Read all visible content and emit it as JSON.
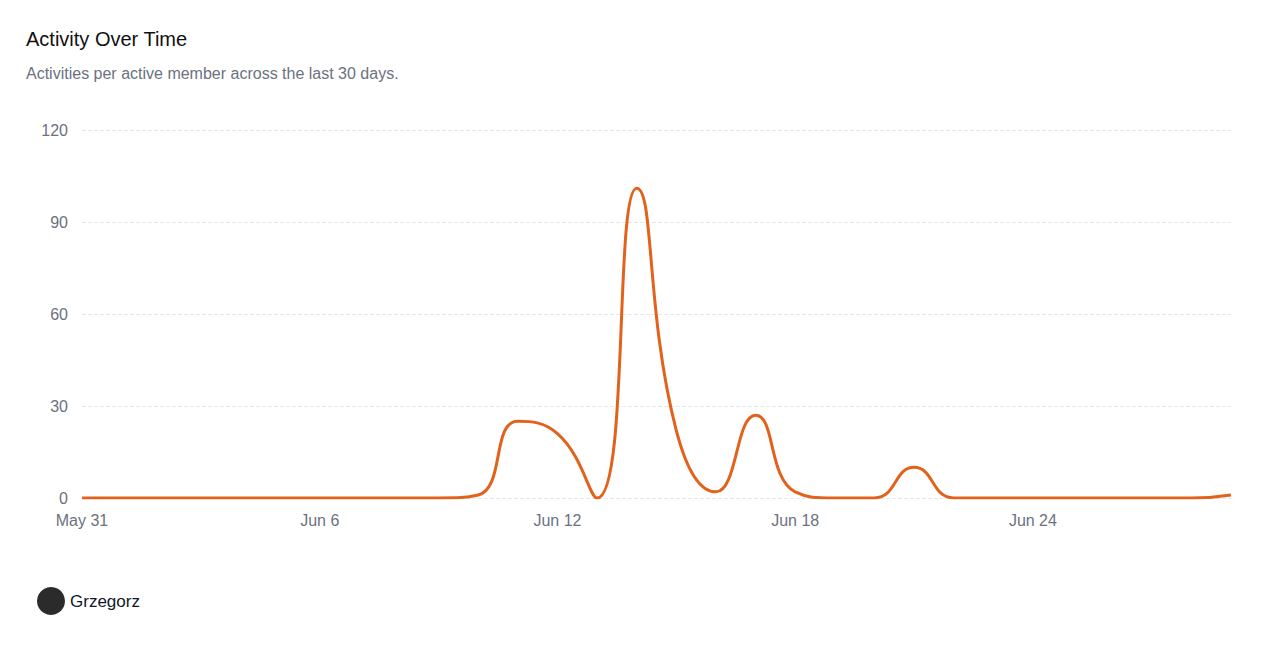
{
  "chart_data": {
    "type": "line",
    "title": "Activity Over Time",
    "subtitle": "Activities per active member across the last 30 days.",
    "categories": [
      "May 31",
      null,
      null,
      null,
      null,
      null,
      "Jun 6",
      null,
      null,
      null,
      null,
      null,
      "Jun 12",
      null,
      null,
      null,
      null,
      null,
      "Jun 18",
      null,
      null,
      null,
      null,
      null,
      "Jun 24",
      null,
      null,
      null,
      null,
      null
    ],
    "series": [
      {
        "name": "Grzegorz",
        "color": "#e2621b",
        "values": [
          0,
          0,
          0,
          0,
          0,
          0,
          0,
          0,
          0,
          0,
          1,
          25,
          21,
          0,
          101,
          22,
          2,
          27,
          2,
          0,
          0,
          10,
          0,
          0,
          0,
          0,
          0,
          0,
          0,
          1
        ]
      }
    ],
    "ylim": [
      0,
      120
    ],
    "yticks": [
      0,
      30,
      60,
      90,
      120
    ],
    "grid": true,
    "legend": "bottom left",
    "line_style": "smooth",
    "marker": "none"
  }
}
